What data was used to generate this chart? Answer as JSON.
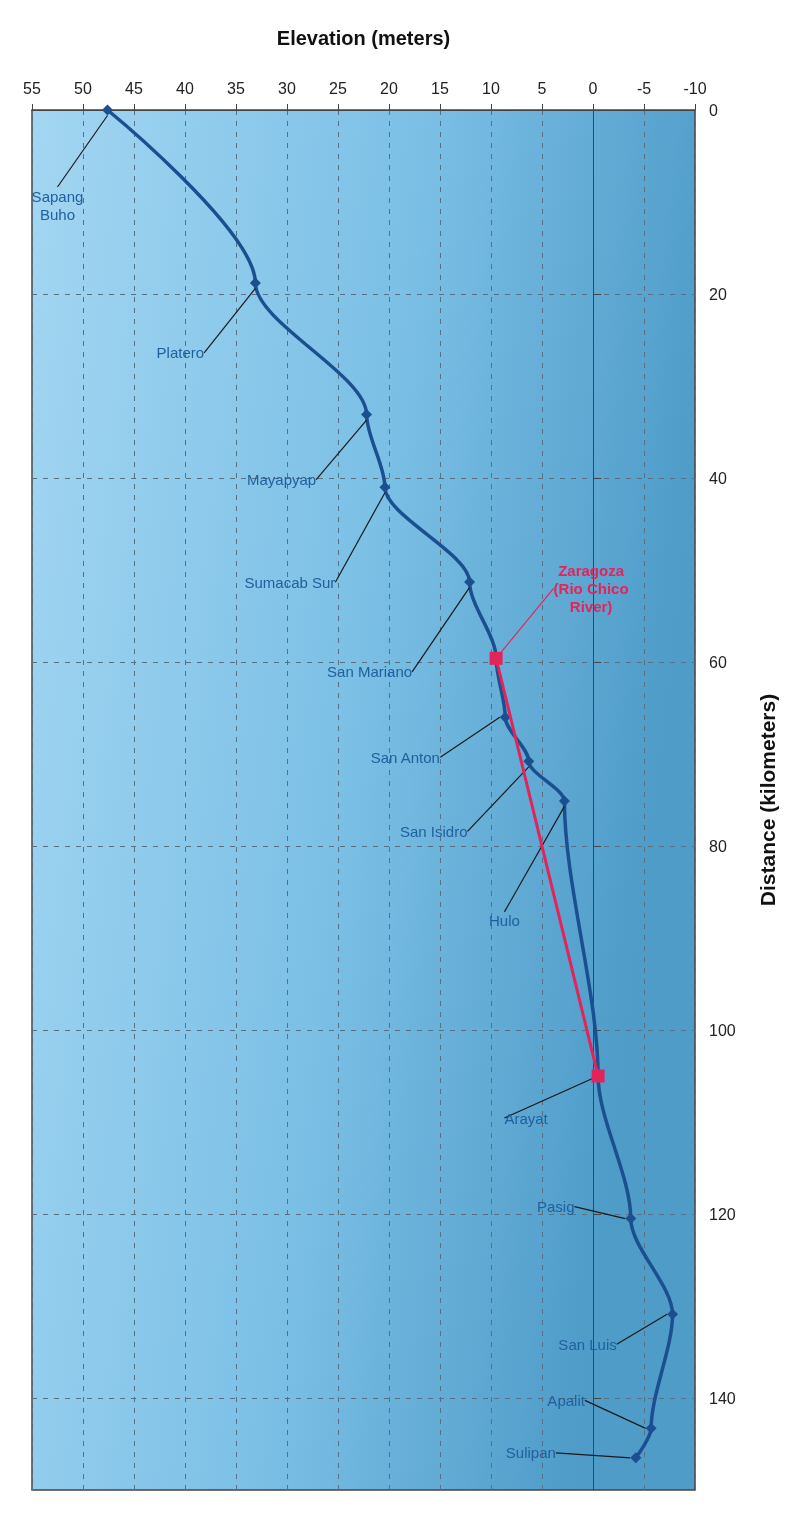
{
  "chart_data": {
    "type": "line",
    "xlabel": "Elevation (meters)",
    "ylabel": "Distance (kilometers)",
    "xlim": [
      55,
      -10
    ],
    "xticks": [
      55,
      50,
      45,
      40,
      35,
      30,
      25,
      20,
      15,
      10,
      5,
      0,
      -5,
      -10
    ],
    "ylim": [
      150,
      0
    ],
    "yticks": [
      0,
      20,
      40,
      60,
      80,
      100,
      120,
      140
    ],
    "grid": true,
    "line_style": "solid",
    "series": [
      {
        "color": "#1b4f8f",
        "marker": "diamond",
        "x": [
          47.6,
          33.1,
          22.2,
          20.4,
          12.1,
          9.5,
          8.6,
          6.3,
          2.8,
          -0.5,
          -3.7,
          -7.8,
          -5.7,
          -4.2
        ],
        "values": [
          0,
          18.8,
          33.1,
          41,
          51.3,
          59.6,
          66,
          70.8,
          75.1,
          105,
          120.5,
          130.9,
          143.3,
          146.5
        ]
      },
      {
        "color": "#e3245a",
        "marker": "square",
        "x": [
          9.5,
          -0.5
        ],
        "values": [
          59.6,
          105
        ]
      }
    ],
    "annotations": [
      {
        "text": "Sapang\nBuho",
        "x": 47.6,
        "y": 0
      },
      {
        "text": "Platero",
        "x": 33.1,
        "y": 18.8
      },
      {
        "text": "Mayapyap",
        "x": 22.2,
        "y": 33.1
      },
      {
        "text": "Sumacab Sur",
        "x": 20.4,
        "y": 41
      },
      {
        "text": "San Mariano",
        "x": 12.1,
        "y": 51.3
      },
      {
        "text": "Zaragoza\n(Rio Chico\nRiver)",
        "x": 9.5,
        "y": 59.6
      },
      {
        "text": "San Anton",
        "x": 8.6,
        "y": 66
      },
      {
        "text": "San Isidro",
        "x": 6.3,
        "y": 70.8
      },
      {
        "text": "Hulo",
        "x": 2.8,
        "y": 75.1
      },
      {
        "text": "Arayat",
        "x": -0.5,
        "y": 105
      },
      {
        "text": "Pasig",
        "x": -3.7,
        "y": 120.5
      },
      {
        "text": "San Luis",
        "x": -7.8,
        "y": 130.9
      },
      {
        "text": "Apalit",
        "x": -5.7,
        "y": 143.3
      },
      {
        "text": "Sulipan",
        "x": -4.2,
        "y": 146.5
      }
    ]
  }
}
